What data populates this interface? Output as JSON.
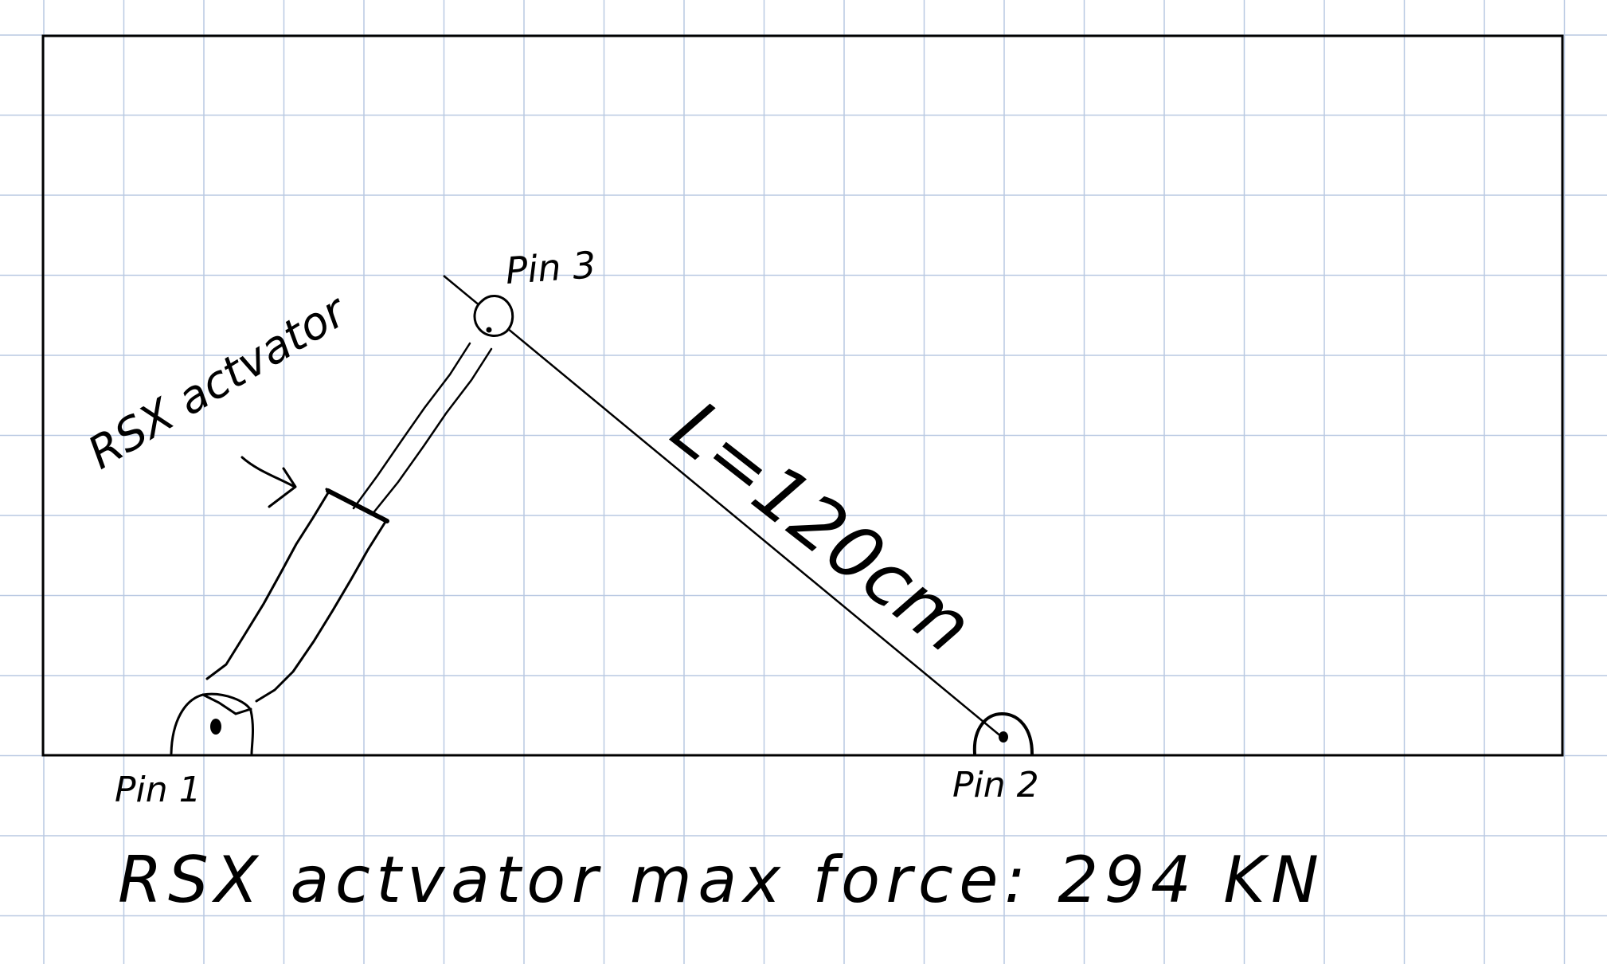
{
  "colors": {
    "paper": "#ffffff",
    "grid": "#b9c9e2",
    "ink": "#000000"
  },
  "labels": {
    "pin1": "Pin 1",
    "pin2": "Pin 2",
    "pin3": "Pin 3",
    "actuator": "RSX actvator",
    "length": "L=120cm",
    "max_force": "RSX actvator max force: 294 KN"
  }
}
